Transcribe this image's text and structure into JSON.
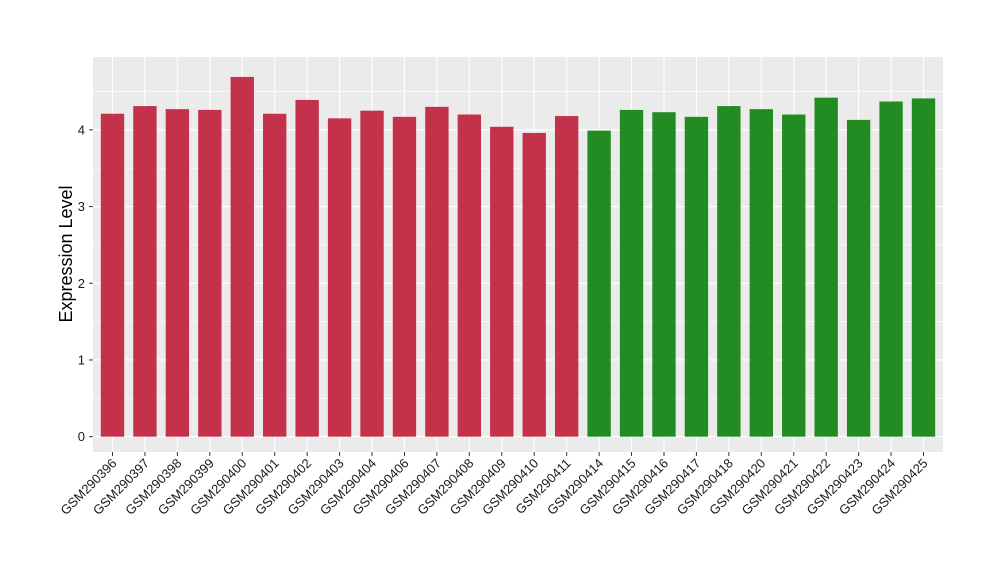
{
  "chart_data": {
    "type": "bar",
    "ylabel": "Expression Level",
    "xlabel": "",
    "ylim": [
      -0.2,
      4.95
    ],
    "yticks": [
      0,
      1,
      2,
      3,
      4
    ],
    "grid": true,
    "panel_background": "#ebebeb",
    "grid_color": "#ffffff",
    "categories": [
      "GSM290396",
      "GSM290397",
      "GSM290398",
      "GSM290399",
      "GSM290400",
      "GSM290401",
      "GSM290402",
      "GSM290403",
      "GSM290404",
      "GSM290406",
      "GSM290407",
      "GSM290408",
      "GSM290409",
      "GSM290410",
      "GSM290411",
      "GSM290414",
      "GSM290415",
      "GSM290416",
      "GSM290417",
      "GSM290418",
      "GSM290420",
      "GSM290421",
      "GSM290422",
      "GSM290423",
      "GSM290424",
      "GSM290425"
    ],
    "values": [
      4.21,
      4.31,
      4.27,
      4.26,
      4.69,
      4.21,
      4.39,
      4.15,
      4.25,
      4.17,
      4.3,
      4.2,
      4.04,
      3.96,
      4.18,
      3.99,
      4.26,
      4.23,
      4.17,
      4.31,
      4.27,
      4.2,
      4.42,
      4.13,
      4.37,
      4.41
    ],
    "bar_colors": [
      "#c3314b",
      "#c3314b",
      "#c3314b",
      "#c3314b",
      "#c3314b",
      "#c3314b",
      "#c3314b",
      "#c3314b",
      "#c3314b",
      "#c3314b",
      "#c3314b",
      "#c3314b",
      "#c3314b",
      "#c3314b",
      "#c3314b",
      "#228b22",
      "#228b22",
      "#228b22",
      "#228b22",
      "#228b22",
      "#228b22",
      "#228b22",
      "#228b22",
      "#228b22",
      "#228b22",
      "#228b22"
    ]
  }
}
